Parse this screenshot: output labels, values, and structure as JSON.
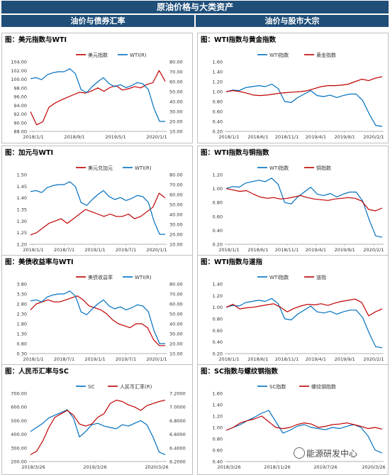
{
  "header": {
    "title": "原油价格与大类资产",
    "left_column": "油价与债券汇率",
    "right_column": "油价与股市大宗"
  },
  "watermark": "能源研发中心",
  "colors": {
    "header": "#1f4e79",
    "red": "#c00000",
    "blue": "#0070c0"
  },
  "chart_data": [
    {
      "id": "c1",
      "type": "line",
      "title": "图：美元指数与WTI",
      "x_ticks": [
        "2018/1/1",
        "2018/9/1",
        "2019/5/1",
        "2020/1/1"
      ],
      "left_axis": {
        "ticks": [
          "104.00",
          "102.00",
          "100.00",
          "98.00",
          "96.00",
          "94.00",
          "92.00",
          "90.00",
          "88.00"
        ],
        "range": [
          88,
          104
        ]
      },
      "right_axis": {
        "ticks": [
          "80.00",
          "70.00",
          "60.00",
          "50.00",
          "40.00",
          "30.00",
          "20.00",
          "10.00"
        ],
        "range": [
          10,
          80
        ]
      },
      "series": [
        {
          "name": "美元指数",
          "color": "#c00000",
          "axis": "left",
          "values": [
            92.5,
            89.5,
            90.2,
            93.5,
            94.5,
            95.2,
            95.8,
            96.4,
            97.0,
            96.8,
            97.3,
            98.0,
            97.2,
            98.1,
            98.5,
            97.5,
            97.8,
            98.3,
            98.0,
            98.8,
            99.2,
            102.0,
            99.5
          ]
        },
        {
          "name": "WTI(R)",
          "color": "#0070c0",
          "axis": "right",
          "values": [
            63,
            64,
            62,
            67,
            69,
            70,
            70,
            73,
            68,
            52,
            49,
            55,
            60,
            64,
            58,
            55,
            57,
            54,
            56,
            59,
            58,
            52,
            33,
            20,
            20
          ]
        }
      ]
    },
    {
      "id": "c2",
      "type": "line",
      "title": "图：WTI指数与黄金指数",
      "x_ticks": [
        "2018/1/1",
        "2018/6/1",
        "2018/11/1",
        "2019/4/1",
        "2019/9/1",
        "2020/2/1"
      ],
      "left_axis": {
        "ticks": [
          "1.60",
          "1.40",
          "1.20",
          "1.00",
          "0.80",
          "0.60",
          "0.40",
          "0.20"
        ],
        "range": [
          0.2,
          1.6
        ]
      },
      "series": [
        {
          "name": "WTI指数",
          "color": "#0070c0",
          "axis": "left",
          "values": [
            1.0,
            1.03,
            1.02,
            1.08,
            1.1,
            1.12,
            1.1,
            1.15,
            1.06,
            0.8,
            0.78,
            0.88,
            0.95,
            1.02,
            0.92,
            0.9,
            0.93,
            0.88,
            0.92,
            0.95,
            0.95,
            0.82,
            0.55,
            0.32,
            0.3
          ]
        },
        {
          "name": "黄金指数",
          "color": "#c00000",
          "axis": "left",
          "values": [
            1.0,
            1.02,
            1.0,
            0.97,
            0.93,
            0.92,
            0.93,
            0.95,
            0.97,
            0.98,
            0.99,
            1.0,
            1.02,
            1.06,
            1.1,
            1.12,
            1.12,
            1.13,
            1.15,
            1.2,
            1.25,
            1.22,
            1.27,
            1.3
          ]
        }
      ]
    },
    {
      "id": "c3",
      "type": "line",
      "title": "图：加元与WTI",
      "x_ticks": [
        "2018/1/1",
        "2018/7/1",
        "2019/1/1",
        "2019/7/1",
        "2020/1/1"
      ],
      "left_axis": {
        "ticks": [
          "1.50",
          "1.45",
          "1.40",
          "1.35",
          "1.30",
          "1.25",
          "1.20"
        ],
        "range": [
          1.2,
          1.5
        ]
      },
      "right_axis": {
        "ticks": [
          "80.00",
          "70.00",
          "60.00",
          "50.00",
          "40.00",
          "30.00",
          "20.00",
          "10.00"
        ],
        "range": [
          10,
          80
        ]
      },
      "series": [
        {
          "name": "美元兑加元",
          "color": "#c00000",
          "axis": "left",
          "values": [
            1.24,
            1.25,
            1.27,
            1.29,
            1.3,
            1.31,
            1.29,
            1.31,
            1.33,
            1.35,
            1.34,
            1.33,
            1.32,
            1.33,
            1.32,
            1.32,
            1.33,
            1.31,
            1.32,
            1.34,
            1.36,
            1.42,
            1.4
          ]
        },
        {
          "name": "WTI(R)",
          "color": "#0070c0",
          "axis": "right",
          "values": [
            63,
            64,
            62,
            67,
            69,
            70,
            70,
            73,
            68,
            52,
            49,
            55,
            60,
            64,
            58,
            55,
            57,
            54,
            56,
            59,
            58,
            52,
            33,
            20,
            20
          ]
        }
      ]
    },
    {
      "id": "c4",
      "type": "line",
      "title": "图：WTI指数与铜指数",
      "x_ticks": [
        "2018/1/1",
        "2018/6/1",
        "2018/11/1",
        "2019/4/1",
        "2019/9/1",
        "2020/2/1"
      ],
      "left_axis": {
        "ticks": [
          "1.20",
          "1.00",
          "0.80",
          "0.60",
          "0.40",
          "0.20"
        ],
        "range": [
          0.2,
          1.2
        ]
      },
      "series": [
        {
          "name": "WTI指数",
          "color": "#0070c0",
          "axis": "left",
          "values": [
            1.0,
            1.03,
            1.02,
            1.08,
            1.1,
            1.12,
            1.1,
            1.15,
            1.06,
            0.8,
            0.78,
            0.88,
            0.95,
            1.02,
            0.92,
            0.9,
            0.93,
            0.88,
            0.92,
            0.95,
            0.95,
            0.82,
            0.55,
            0.32,
            0.3
          ]
        },
        {
          "name": "铜指数",
          "color": "#c00000",
          "axis": "left",
          "values": [
            1.0,
            0.98,
            0.96,
            0.97,
            0.92,
            0.88,
            0.86,
            0.87,
            0.85,
            0.86,
            0.88,
            0.9,
            0.87,
            0.85,
            0.84,
            0.83,
            0.85,
            0.86,
            0.87,
            0.86,
            0.82,
            0.7,
            0.68,
            0.72
          ]
        }
      ]
    },
    {
      "id": "c5",
      "type": "line",
      "title": "图：美债收益率与WTI",
      "x_ticks": [
        "2018/1/1",
        "2018/7/1",
        "2019/1/1",
        "2019/7/1",
        "2020/1/1"
      ],
      "left_axis": {
        "ticks": [
          "3.80",
          "3.30",
          "2.80",
          "2.30",
          "1.80",
          "1.30",
          "0.80",
          "0.30"
        ],
        "range": [
          0.3,
          3.8
        ]
      },
      "right_axis": {
        "ticks": [
          "80.00",
          "70.00",
          "60.00",
          "50.00",
          "40.00",
          "30.00",
          "20.00",
          "10.00"
        ],
        "range": [
          10,
          80
        ]
      },
      "series": [
        {
          "name": "美债收益率",
          "color": "#c00000",
          "axis": "left",
          "values": [
            2.5,
            2.8,
            2.9,
            3.0,
            2.9,
            2.9,
            3.0,
            3.1,
            3.2,
            3.0,
            2.7,
            2.6,
            2.5,
            2.3,
            2.0,
            1.8,
            1.7,
            1.6,
            1.8,
            1.8,
            1.6,
            1.0,
            0.7,
            0.7
          ]
        },
        {
          "name": "WTI(R)",
          "color": "#0070c0",
          "axis": "right",
          "values": [
            63,
            64,
            62,
            67,
            69,
            70,
            70,
            73,
            68,
            52,
            49,
            55,
            60,
            64,
            58,
            55,
            57,
            54,
            56,
            59,
            58,
            52,
            33,
            20,
            20
          ]
        }
      ]
    },
    {
      "id": "c6",
      "type": "line",
      "title": "图：WTI指数与道指",
      "x_ticks": [
        "2018/1/1",
        "2018/6/1",
        "2018/11/1",
        "2019/4/1",
        "2019/9/1",
        "2020/2/1"
      ],
      "left_axis": {
        "ticks": [
          "1.40",
          "1.20",
          "1.00",
          "0.80",
          "0.60",
          "0.40",
          "0.20"
        ],
        "range": [
          0.2,
          1.4
        ]
      },
      "series": [
        {
          "name": "WTI指数",
          "color": "#0070c0",
          "axis": "left",
          "values": [
            1.0,
            1.03,
            1.02,
            1.08,
            1.1,
            1.12,
            1.1,
            1.15,
            1.06,
            0.8,
            0.78,
            0.88,
            0.95,
            1.02,
            0.92,
            0.9,
            0.93,
            0.88,
            0.92,
            0.95,
            0.95,
            0.82,
            0.55,
            0.32,
            0.3
          ]
        },
        {
          "name": "道指",
          "color": "#c00000",
          "axis": "left",
          "values": [
            1.0,
            1.05,
            0.97,
            0.99,
            1.0,
            1.02,
            1.04,
            1.06,
            1.0,
            0.92,
            0.98,
            1.02,
            1.05,
            1.04,
            1.06,
            1.03,
            1.07,
            1.1,
            1.12,
            1.14,
            1.08,
            0.85,
            0.92,
            0.97
          ]
        }
      ]
    },
    {
      "id": "c7",
      "type": "line",
      "title": "图：人民币汇率与SC",
      "x_ticks": [
        "2018/3/26",
        "2019/3/26",
        "2020/3/26"
      ],
      "left_axis": {
        "ticks": [
          "700.00",
          "600.00",
          "500.00",
          "400.00",
          "300.00",
          "200.00"
        ],
        "range": [
          200,
          700
        ]
      },
      "right_axis": {
        "ticks": [
          "7.2000",
          "7.0000",
          "6.8000",
          "6.6000",
          "6.4000",
          "6.2000"
        ],
        "range": [
          6.2,
          7.2
        ]
      },
      "series": [
        {
          "name": "SC",
          "color": "#0070c0",
          "axis": "left",
          "values": [
            420,
            450,
            480,
            520,
            540,
            560,
            580,
            520,
            380,
            420,
            470,
            480,
            460,
            450,
            440,
            470,
            460,
            480,
            500,
            470,
            380,
            270,
            250
          ]
        },
        {
          "name": "人民币汇率(R)",
          "color": "#c00000",
          "axis": "right",
          "values": [
            6.3,
            6.35,
            6.5,
            6.7,
            6.85,
            6.9,
            6.95,
            6.88,
            6.75,
            6.72,
            6.75,
            6.85,
            6.9,
            7.05,
            7.1,
            7.08,
            7.03,
            7.0,
            6.95,
            7.02,
            7.05,
            7.08,
            7.1
          ]
        }
      ]
    },
    {
      "id": "c8",
      "type": "line",
      "title": "图：SC指数与螺纹钢指数",
      "x_ticks": [
        "2018/3/26",
        "2018/11/26",
        "2019/7/26",
        "2020/3/26"
      ],
      "left_axis": {
        "ticks": [
          "1.60",
          "1.40",
          "1.20",
          "1.00",
          "0.80",
          "0.60",
          "0.40"
        ],
        "range": [
          0.4,
          1.6
        ]
      },
      "series": [
        {
          "name": "SC指数",
          "color": "#0070c0",
          "axis": "left",
          "values": [
            0.95,
            1.0,
            1.05,
            1.12,
            1.18,
            1.25,
            1.3,
            1.1,
            0.9,
            0.95,
            1.02,
            1.05,
            1.0,
            0.98,
            0.96,
            1.0,
            0.98,
            1.02,
            1.05,
            1.0,
            0.85,
            0.6,
            0.55
          ]
        },
        {
          "name": "螺纹钢指数",
          "color": "#c00000",
          "axis": "left",
          "values": [
            0.95,
            1.0,
            1.08,
            1.12,
            1.15,
            1.2,
            1.1,
            1.0,
            0.98,
            1.0,
            1.05,
            1.08,
            1.06,
            1.0,
            1.02,
            1.05,
            1.06,
            1.08,
            1.05,
            1.02,
            0.98,
            1.0,
            0.97
          ]
        }
      ]
    }
  ]
}
